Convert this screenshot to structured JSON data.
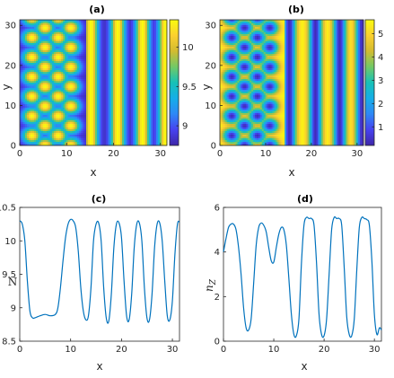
{
  "chart_data": [
    {
      "type": "heatmap",
      "title": "(a)",
      "xlabel": "x",
      "ylabel": "y",
      "xlim": [
        0,
        31.4
      ],
      "ylim": [
        0,
        31.4
      ],
      "xticks": [
        "0",
        "10",
        "20",
        "30"
      ],
      "yticks": [
        "0",
        "10",
        "20",
        "30"
      ],
      "colorbar": {
        "range": [
          8.75,
          10.35
        ],
        "ticks": [
          "9",
          "9.5",
          "10"
        ],
        "tick_values": [
          9,
          9.5,
          10
        ]
      },
      "colormap": [
        "#3e26a8",
        "#4742f0",
        "#2e88f6",
        "#15aee8",
        "#16c1b7",
        "#72c966",
        "#d2bb31",
        "#fbd02f",
        "#f9fb0e"
      ],
      "pattern": {
        "spots_region_x": [
          0,
          14
        ],
        "spot_columns_x": [
          2.6,
          5.4,
          8.2,
          10.9
        ],
        "spot_spacing_y": 4.9,
        "stripes_x": [
          15.2,
          20.9,
          26.2,
          31.1
        ]
      }
    },
    {
      "type": "heatmap",
      "title": "(b)",
      "xlabel": "x",
      "ylabel": "y",
      "xlim": [
        0,
        31.4
      ],
      "ylim": [
        0,
        31.4
      ],
      "xticks": [
        "0",
        "10",
        "20",
        "30"
      ],
      "yticks": [
        "0",
        "10",
        "20",
        "30"
      ],
      "colorbar": {
        "range": [
          0.2,
          5.6
        ],
        "ticks": [
          "1",
          "2",
          "3",
          "4",
          "5"
        ],
        "tick_values": [
          1,
          2,
          3,
          4,
          5
        ]
      },
      "colormap": [
        "#3e26a8",
        "#4742f0",
        "#2e88f6",
        "#15aee8",
        "#16c1b7",
        "#72c966",
        "#d2bb31",
        "#fbd02f",
        "#f9fb0e"
      ],
      "pattern": {
        "holes_region_x": [
          0,
          14
        ],
        "hole_columns_x": [
          2.6,
          5.4,
          8.2,
          10.9
        ],
        "hole_spacing_y": 4.9,
        "stripes_x": [
          15.2,
          20.9,
          26.2,
          31.1
        ]
      }
    },
    {
      "type": "line",
      "title": "(c)",
      "xlabel": "x",
      "ylabel": "N",
      "xlim": [
        0,
        31.4
      ],
      "ylim": [
        8.5,
        10.5
      ],
      "xticks": [
        "0",
        "10",
        "20",
        "30"
      ],
      "yticks": [
        "8.5",
        "9",
        "9.5",
        "10",
        "10.5"
      ],
      "color": "#0072bd",
      "x": [
        0,
        0.5,
        1,
        1.5,
        2,
        2.5,
        3,
        4,
        5,
        6,
        7,
        7.5,
        8,
        8.5,
        9,
        9.5,
        10,
        10.5,
        11,
        11.5,
        12,
        12.5,
        13,
        13.5,
        14,
        14.5,
        15,
        15.5,
        16,
        16.5,
        17,
        17.5,
        18,
        18.5,
        19,
        19.5,
        20,
        20.5,
        21,
        21.5,
        22,
        22.5,
        23,
        23.5,
        24,
        24.5,
        25,
        25.5,
        26,
        26.5,
        27,
        27.5,
        28,
        28.5,
        29,
        29.5,
        30,
        30.5,
        31,
        31.4
      ],
      "y": [
        10.3,
        10.25,
        10.0,
        9.4,
        8.95,
        8.85,
        8.85,
        8.88,
        8.9,
        8.88,
        8.9,
        9.0,
        9.3,
        9.7,
        10.05,
        10.25,
        10.32,
        10.3,
        10.2,
        9.85,
        9.3,
        8.95,
        8.82,
        8.88,
        9.3,
        10.0,
        10.25,
        10.27,
        10.0,
        9.3,
        8.85,
        8.8,
        9.2,
        9.9,
        10.25,
        10.27,
        10.05,
        9.4,
        8.88,
        8.82,
        9.2,
        9.9,
        10.25,
        10.27,
        10.0,
        9.3,
        8.85,
        8.82,
        9.2,
        9.9,
        10.25,
        10.27,
        10.0,
        9.4,
        8.88,
        8.82,
        9.1,
        9.8,
        10.25,
        10.28
      ]
    },
    {
      "type": "line",
      "title": "(d)",
      "xlabel": "x",
      "ylabel": "n_Z",
      "xlim": [
        0,
        31.4
      ],
      "ylim": [
        0,
        6
      ],
      "xticks": [
        "0",
        "10",
        "20",
        "30"
      ],
      "yticks": [
        "0",
        "2",
        "4",
        "6"
      ],
      "color": "#0072bd",
      "x": [
        0,
        0.5,
        1,
        1.5,
        2,
        2.5,
        3,
        3.5,
        4,
        4.5,
        5,
        5.5,
        6,
        6.5,
        7,
        7.5,
        8,
        8.5,
        9,
        9.5,
        10,
        10.5,
        11,
        11.5,
        12,
        12.5,
        13,
        13.5,
        14,
        14.5,
        15,
        15.5,
        16,
        16.5,
        17,
        17.5,
        18,
        18.5,
        19,
        19.5,
        20,
        20.5,
        21,
        21.5,
        22,
        22.5,
        23,
        23.5,
        24,
        24.5,
        25,
        25.5,
        26,
        26.5,
        27,
        27.5,
        28,
        28.5,
        29,
        29.5,
        30,
        30.5,
        31,
        31.4
      ],
      "y": [
        4.0,
        4.6,
        5.1,
        5.25,
        5.25,
        5.0,
        4.2,
        3.0,
        1.5,
        0.6,
        0.5,
        1.0,
        2.6,
        4.3,
        5.1,
        5.3,
        5.2,
        4.9,
        4.2,
        3.6,
        3.55,
        4.2,
        4.8,
        5.1,
        5.0,
        4.3,
        2.8,
        1.2,
        0.3,
        0.25,
        1.0,
        3.5,
        5.2,
        5.55,
        5.5,
        5.5,
        5.2,
        3.5,
        1.2,
        0.3,
        0.25,
        1.0,
        3.0,
        5.0,
        5.55,
        5.5,
        5.5,
        5.2,
        3.3,
        1.1,
        0.3,
        0.25,
        1.0,
        3.2,
        5.1,
        5.55,
        5.5,
        5.45,
        5.2,
        3.6,
        1.2,
        0.3,
        0.6,
        0.5
      ]
    }
  ]
}
